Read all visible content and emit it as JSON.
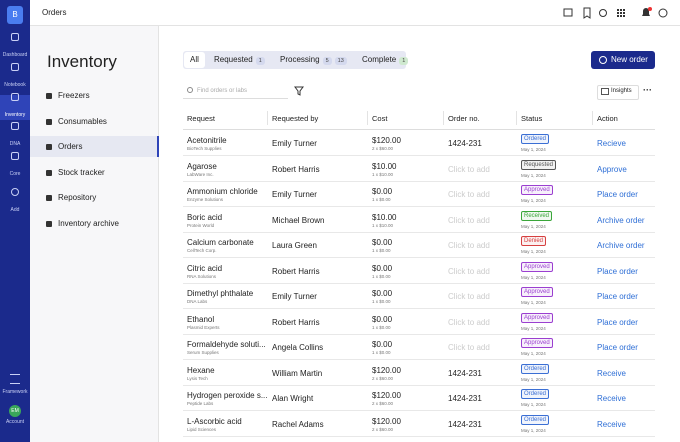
{
  "nav": {
    "logo": "B",
    "items": [
      "Dashboard",
      "Notebook",
      "Inventory",
      "DNA",
      "Core",
      "Add"
    ],
    "bottom": [
      "Framework",
      "Account"
    ],
    "avatar": "EM"
  },
  "topbar": {
    "title": "Orders"
  },
  "sidebar": {
    "title": "Inventory",
    "items": [
      "Freezers",
      "Consumables",
      "Orders",
      "Stock tracker",
      "Repository",
      "Inventory archive"
    ]
  },
  "tabs": [
    {
      "label": "All"
    },
    {
      "label": "Requested",
      "counts": [
        1
      ]
    },
    {
      "label": "Processing",
      "counts": [
        5,
        13
      ]
    },
    {
      "label": "Complete",
      "counts": [
        1
      ]
    }
  ],
  "new_order": "New order",
  "search_placeholder": "Find orders or labs",
  "insights": "Insights",
  "table": {
    "headers": [
      "Request",
      "Requested by",
      "Cost",
      "Order no.",
      "Status",
      "Action"
    ],
    "rows": [
      {
        "item": "Acetonitrile",
        "vendor": "BioTech Supplies",
        "by": "Emily Turner",
        "cost": "$120.00",
        "qty": "2 x $60.00",
        "order": "1424-231",
        "status": "Ordered",
        "badge_color": "#3b6fd4",
        "date": "May 1, 2024",
        "action": "Recieve"
      },
      {
        "item": "Agarose",
        "vendor": "LabWare Inc.",
        "by": "Robert Harris",
        "cost": "$10.00",
        "qty": "1 x $10.00",
        "order_hint": "Click to add",
        "status": "Requested",
        "badge_color": "#555555",
        "date": "May 1, 2024",
        "action": "Approve"
      },
      {
        "item": "Ammonium chloride",
        "vendor": "Enzyme Solutions",
        "by": "Emily Turner",
        "cost": "$0.00",
        "qty": "1 x $0.00",
        "order_hint": "Click to add",
        "status": "Approved",
        "badge_color": "#9b3fd0",
        "date": "May 1, 2024",
        "action": "Place order"
      },
      {
        "item": "Boric acid",
        "vendor": "Protein World",
        "by": "Michael Brown",
        "cost": "$10.00",
        "qty": "1 x $10.00",
        "order_hint": "Click to add",
        "status": "Received",
        "badge_color": "#3aa63a",
        "date": "May 1, 2024",
        "action": "Archive order"
      },
      {
        "item": "Calcium carbonate",
        "vendor": "CellTech Corp.",
        "by": "Laura Green",
        "cost": "$0.00",
        "qty": "1 x $0.00",
        "order_hint": "Click to add",
        "status": "Denied",
        "badge_color": "#d64040",
        "date": "May 1, 2024",
        "action": "Archive order"
      },
      {
        "item": "Citric acid",
        "vendor": "RNA Solutions",
        "by": "Robert Harris",
        "cost": "$0.00",
        "qty": "1 x $0.00",
        "order_hint": "Click to add",
        "status": "Approved",
        "badge_color": "#9b3fd0",
        "date": "May 1, 2024",
        "action": "Place order"
      },
      {
        "item": "Dimethyl phthalate",
        "vendor": "DNA Labs",
        "by": "Emily Turner",
        "cost": "$0.00",
        "qty": "1 x $0.00",
        "order_hint": "Click to add",
        "status": "Approved",
        "badge_color": "#9b3fd0",
        "date": "May 1, 2024",
        "action": "Place order"
      },
      {
        "item": "Ethanol",
        "vendor": "Plasmid Experts",
        "by": "Robert Harris",
        "cost": "$0.00",
        "qty": "1 x $0.00",
        "order_hint": "Click to add",
        "status": "Approved",
        "badge_color": "#9b3fd0",
        "date": "May 1, 2024",
        "action": "Place order"
      },
      {
        "item": "Formaldehyde soluti...",
        "vendor": "Serum Supplies",
        "by": "Angela Collins",
        "cost": "$0.00",
        "qty": "1 x $0.00",
        "order_hint": "Click to add",
        "status": "Approved",
        "badge_color": "#9b3fd0",
        "date": "May 1, 2024",
        "action": "Place order"
      },
      {
        "item": "Hexane",
        "vendor": "Lysis Tech",
        "by": "William Martin",
        "cost": "$120.00",
        "qty": "2 x $60.00",
        "order": "1424-231",
        "status": "Ordered",
        "badge_color": "#3b6fd4",
        "date": "May 1, 2024",
        "action": "Receive"
      },
      {
        "item": "Hydrogen peroxide s...",
        "vendor": "Peptide Labs",
        "by": "Alan Wright",
        "cost": "$120.00",
        "qty": "2 x $60.00",
        "order": "1424-231",
        "status": "Ordered",
        "badge_color": "#3b6fd4",
        "date": "May 1, 2024",
        "action": "Receive"
      },
      {
        "item": "L-Ascorbic acid",
        "vendor": "Lipid Sciences",
        "by": "Rachel Adams",
        "cost": "$120.00",
        "qty": "2 x $60.00",
        "order": "1424-231",
        "status": "Ordered",
        "badge_color": "#3b6fd4",
        "date": "May 1, 2024",
        "action": "Receive"
      }
    ]
  }
}
